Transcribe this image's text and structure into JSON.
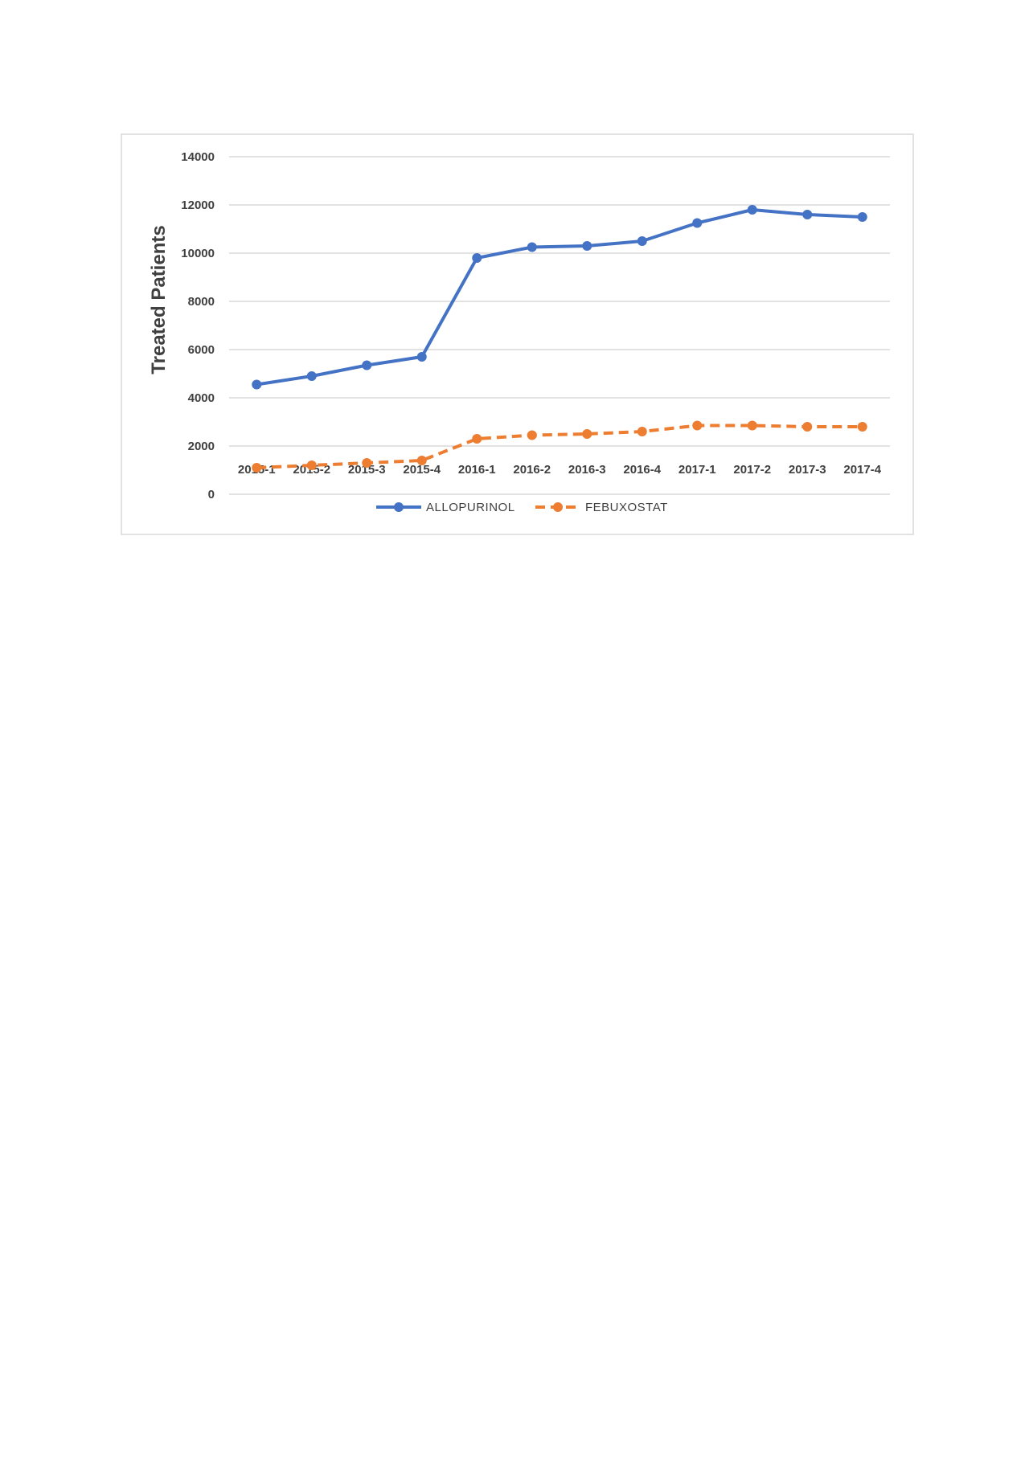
{
  "chart_data": {
    "type": "line",
    "title": "",
    "xlabel": "",
    "ylabel": "Treated Patients",
    "ylim": [
      0,
      14000
    ],
    "yticks": [
      0,
      2000,
      4000,
      6000,
      8000,
      10000,
      12000,
      14000
    ],
    "grid": true,
    "legend_position": "bottom",
    "categories": [
      "2015-1",
      "2015-2",
      "2015-3",
      "2015-4",
      "2016-1",
      "2016-2",
      "2016-3",
      "2016-4",
      "2017-1",
      "2017-2",
      "2017-3",
      "2017-4"
    ],
    "series": [
      {
        "name": "ALLOPURINOL",
        "color": "#4472c4",
        "style": "solid",
        "values": [
          4550,
          4900,
          5350,
          5700,
          9800,
          10250,
          10300,
          10500,
          11250,
          11800,
          11600,
          11500
        ]
      },
      {
        "name": "FEBUXOSTAT",
        "color": "#ed7d31",
        "style": "dashed",
        "values": [
          1100,
          1200,
          1300,
          1400,
          2300,
          2450,
          2500,
          2600,
          2850,
          2850,
          2800,
          2800
        ]
      }
    ]
  }
}
